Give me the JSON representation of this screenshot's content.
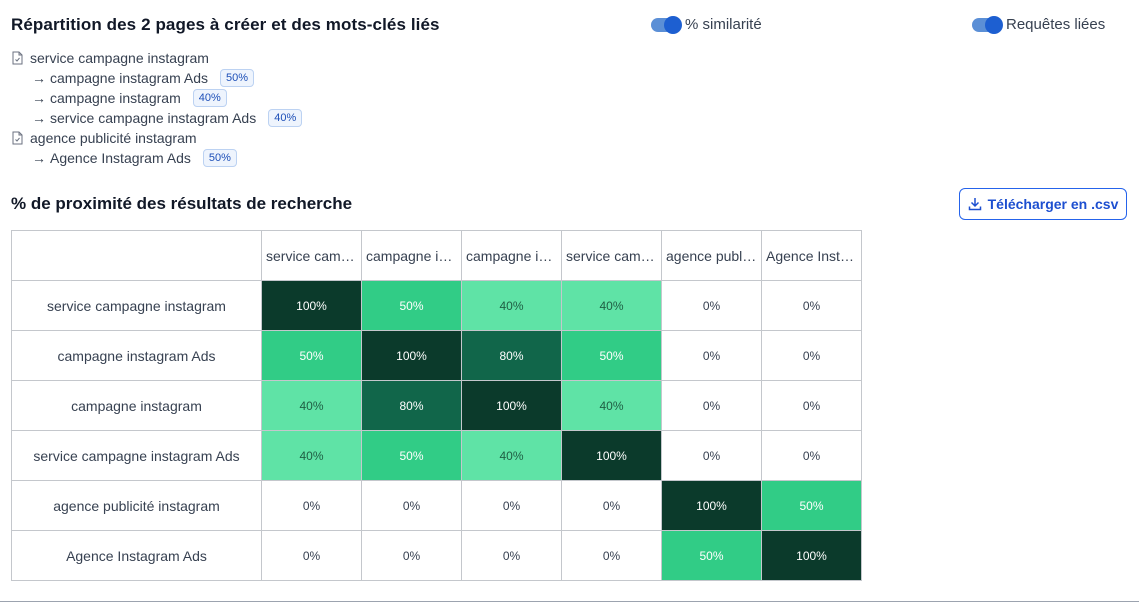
{
  "title": "Répartition des 2 pages à créer et des mots-clés liés",
  "toggles": {
    "similarity_label": "% similarité",
    "related_label": "Requêtes liées"
  },
  "pages": [
    {
      "name": "service campagne instagram",
      "keywords": [
        {
          "label": "campagne instagram Ads",
          "pct": "50%"
        },
        {
          "label": "campagne instagram",
          "pct": "40%"
        },
        {
          "label": "service campagne instagram Ads",
          "pct": "40%"
        }
      ]
    },
    {
      "name": "agence publicité instagram",
      "keywords": [
        {
          "label": "Agence Instagram Ads",
          "pct": "50%"
        }
      ]
    }
  ],
  "section_title": "% de proximité des résultats de recherche",
  "download_label": "Télécharger en .csv",
  "matrix": {
    "col_headers": [
      "service cam…",
      "campagne i…",
      "campagne i…",
      "service cam…",
      "agence publ…",
      "Agence Inst…"
    ],
    "row_headers": [
      "service campagne instagram",
      "campagne instagram Ads",
      "campagne instagram",
      "service campagne instagram Ads",
      "agence publicité instagram",
      "Agence Instagram Ads"
    ],
    "values": [
      [
        100,
        50,
        40,
        40,
        0,
        0
      ],
      [
        50,
        100,
        80,
        50,
        0,
        0
      ],
      [
        40,
        80,
        100,
        40,
        0,
        0
      ],
      [
        40,
        50,
        40,
        100,
        0,
        0
      ],
      [
        0,
        0,
        0,
        0,
        100,
        50
      ],
      [
        0,
        0,
        0,
        0,
        50,
        100
      ]
    ],
    "colors": {
      "100": "#0b3a2b",
      "80": "#11664a",
      "50": "#31cc86",
      "40": "#5fe3a6",
      "0": "#ffffff"
    }
  },
  "icons": {
    "page": "document-icon",
    "download": "download-icon",
    "arrow": "→"
  }
}
